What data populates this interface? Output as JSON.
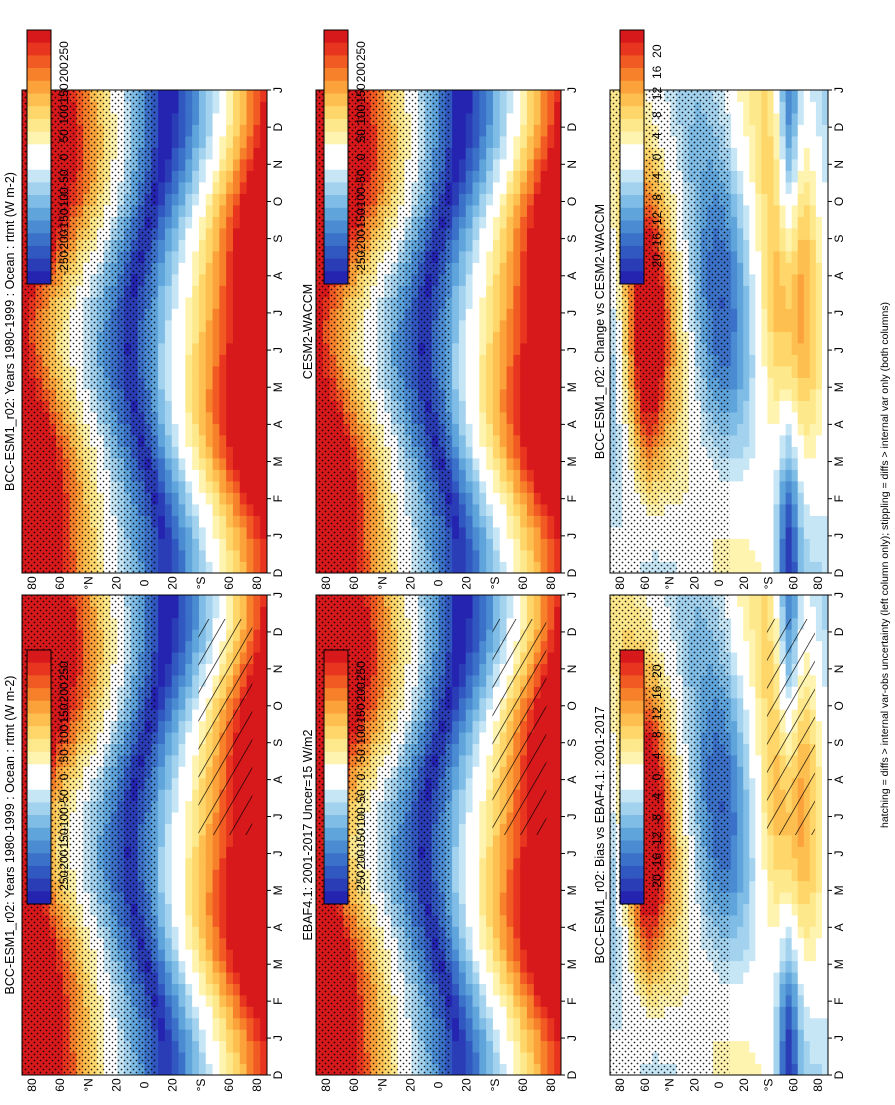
{
  "footnote": "hatching = diffs > internal var-obs uncertainty (left column only); stippling = diffs > internal var only (both columns)",
  "units_label": "(W m⁻²)",
  "chart_data": [
    {
      "type": "heatmap",
      "id": "p1",
      "title": "BCC-ESM1_r02: Years 1980-1999 : Ocean : rtmt (W m-2)",
      "x_dimension": "month",
      "x_ticks": [
        "D",
        "J",
        "F",
        "M",
        "A",
        "M",
        "J",
        "J",
        "A",
        "S",
        "O",
        "N",
        "D",
        "J"
      ],
      "y_ticks": [
        "80",
        "60",
        "°N",
        "20",
        "0",
        "20",
        "°S",
        "60",
        "80"
      ],
      "colorbar": [
        "250",
        "200",
        "150",
        "100",
        "50",
        "0",
        "-50",
        "-100",
        "-150",
        "-200",
        "-250"
      ],
      "hatching": true,
      "stippling": true
    },
    {
      "type": "heatmap",
      "id": "p2",
      "title": "BCC-ESM1_r02: Years 1980-1999 : Ocean : rtmt (W m-2)",
      "x_dimension": "month",
      "x_ticks": [
        "D",
        "J",
        "F",
        "M",
        "A",
        "M",
        "J",
        "J",
        "A",
        "S",
        "O",
        "N",
        "D",
        "J"
      ],
      "y_ticks": [
        "80",
        "60",
        "°N",
        "20",
        "0",
        "20",
        "°S",
        "60",
        "80"
      ],
      "colorbar": [
        "250",
        "200",
        "150",
        "100",
        "50",
        "0",
        "-50",
        "-100",
        "-150",
        "-200",
        "-250"
      ],
      "hatching": false,
      "stippling": true
    },
    {
      "type": "heatmap",
      "id": "p3",
      "title": "EBAF4.1: 2001-2017 Uncer=15 W/m2",
      "x_dimension": "month",
      "x_ticks": [
        "D",
        "J",
        "F",
        "M",
        "A",
        "M",
        "J",
        "J",
        "A",
        "S",
        "O",
        "N",
        "D",
        "J"
      ],
      "y_ticks": [
        "80",
        "60",
        "°N",
        "20",
        "0",
        "20",
        "°S",
        "60",
        "80"
      ],
      "colorbar": [
        "250",
        "200",
        "150",
        "100",
        "50",
        "0",
        "-50",
        "-100",
        "-150",
        "-200",
        "-250"
      ],
      "hatching": true,
      "stippling": true
    },
    {
      "type": "heatmap",
      "id": "p4",
      "title": "CESM2-WACCM",
      "x_dimension": "month",
      "x_ticks": [
        "D",
        "J",
        "F",
        "M",
        "A",
        "M",
        "J",
        "J",
        "A",
        "S",
        "O",
        "N",
        "D",
        "J"
      ],
      "y_ticks": [
        "80",
        "60",
        "°N",
        "20",
        "0",
        "20",
        "°S",
        "60",
        "80"
      ],
      "colorbar": [
        "250",
        "200",
        "150",
        "100",
        "50",
        "0",
        "-50",
        "-100",
        "-150",
        "-200",
        "-250"
      ],
      "hatching": false,
      "stippling": true
    },
    {
      "type": "heatmap",
      "id": "p5",
      "title": "BCC-ESM1_r02: Bias vs EBAF4.1: 2001-2017",
      "x_dimension": "month",
      "x_ticks": [
        "D",
        "J",
        "F",
        "M",
        "A",
        "M",
        "J",
        "J",
        "A",
        "S",
        "O",
        "N",
        "D",
        "J"
      ],
      "y_ticks": [
        "80",
        "60",
        "°N",
        "20",
        "0",
        "20",
        "°S",
        "60",
        "80"
      ],
      "colorbar": [
        "20",
        "16",
        "12",
        "8",
        "4",
        "0",
        "-4",
        "-8",
        "-12",
        "-16",
        "-20"
      ],
      "hatching": true,
      "stippling": true
    },
    {
      "type": "heatmap",
      "id": "p6",
      "title": "BCC-ESM1_r02: Change vs CESM2-WACCM",
      "x_dimension": "month",
      "x_ticks": [
        "D",
        "J",
        "F",
        "M",
        "A",
        "M",
        "J",
        "J",
        "A",
        "S",
        "O",
        "N",
        "D",
        "J"
      ],
      "y_ticks": [
        "80",
        "60",
        "°N",
        "20",
        "0",
        "20",
        "°S",
        "60",
        "80"
      ],
      "colorbar": [
        "20",
        "16",
        "12",
        "8",
        "4",
        "0",
        "-4",
        "-8",
        "-12",
        "-16",
        "-20"
      ],
      "hatching": false,
      "stippling": true
    }
  ],
  "palette": [
    "#d7191c",
    "#e8351f",
    "#f25a23",
    "#f7812b",
    "#fba23a",
    "#fdbf4f",
    "#fed66a",
    "#fee88c",
    "#fff3b0",
    "#ffffff",
    "#ffffff",
    "#c6e6f6",
    "#a3d2ef",
    "#7fbce6",
    "#5fa5dc",
    "#4a8bd2",
    "#3b71c8",
    "#3157c0",
    "#2a3db7",
    "#2424b0"
  ]
}
